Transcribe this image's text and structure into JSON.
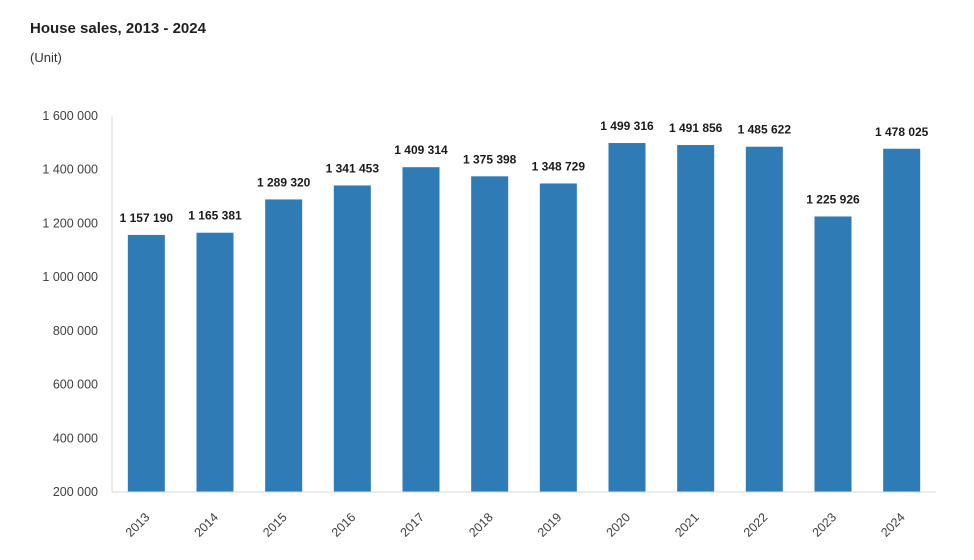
{
  "chart_data": {
    "type": "bar",
    "title": "House sales, 2013 - 2024",
    "subtitle": "(Unit)",
    "xlabel": "",
    "ylabel": "",
    "categories": [
      "2013",
      "2014",
      "2015",
      "2016",
      "2017",
      "2018",
      "2019",
      "2020",
      "2021",
      "2022",
      "2023",
      "2024"
    ],
    "values": [
      1157190,
      1165381,
      1289320,
      1341453,
      1409314,
      1375398,
      1348729,
      1499316,
      1491856,
      1485622,
      1225926,
      1478025
    ],
    "data_labels": [
      "1 157 190",
      "1 165 381",
      "1 289 320",
      "1 341 453",
      "1 409 314",
      "1 375 398",
      "1 348 729",
      "1 499 316",
      "1 491 856",
      "1 485 622",
      "1 225 926",
      "1 478 025"
    ],
    "yticks": [
      200000,
      400000,
      600000,
      800000,
      1000000,
      1200000,
      1400000,
      1600000
    ],
    "ytick_labels": [
      "200 000",
      "400 000",
      "600 000",
      "800 000",
      "1 000 000",
      "1 200 000",
      "1 400 000",
      "1 600 000"
    ],
    "ylim": [
      200000,
      1600000
    ],
    "grid": false,
    "legend": "none",
    "bar_color": "#2e7bb6"
  }
}
